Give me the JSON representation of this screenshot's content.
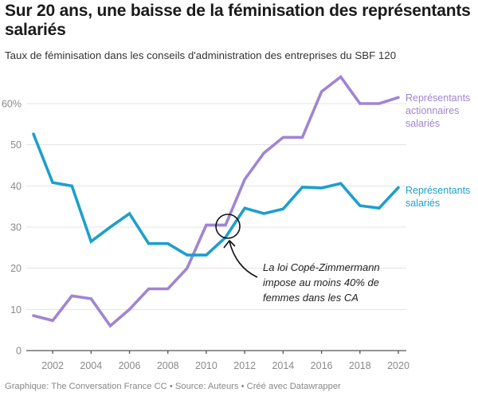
{
  "chart_data": {
    "type": "line",
    "title": "Sur 20 ans, une baisse de la féminisation des représentants salariés",
    "subtitle": "Taux de féminisation dans les conseils d'administration des entreprises du SBF 120",
    "xlabel": "",
    "ylabel": "",
    "x": [
      2001,
      2002,
      2003,
      2004,
      2005,
      2006,
      2007,
      2008,
      2009,
      2010,
      2011,
      2012,
      2013,
      2014,
      2015,
      2016,
      2017,
      2018,
      2019,
      2020
    ],
    "xlim": [
      2001,
      2020
    ],
    "ylim": [
      0,
      60
    ],
    "x_ticks": [
      "2002",
      "2004",
      "2006",
      "2008",
      "2010",
      "2012",
      "2014",
      "2016",
      "2018",
      "2020"
    ],
    "y_ticks": [
      {
        "value": 0,
        "label": "0"
      },
      {
        "value": 10,
        "label": "10"
      },
      {
        "value": 20,
        "label": "20"
      },
      {
        "value": 30,
        "label": "30"
      },
      {
        "value": 40,
        "label": "40"
      },
      {
        "value": 50,
        "label": "50"
      },
      {
        "value": 60,
        "label": "60%"
      }
    ],
    "grid": true,
    "series": [
      {
        "name": "Représentants actionnaires salariés",
        "label_lines": [
          "Représentants",
          "actionnaires",
          "salariés"
        ],
        "color": "#9f85d3",
        "values": [
          8.5,
          7.3,
          13.3,
          12.6,
          6.0,
          10.0,
          15.0,
          15.0,
          20.0,
          30.5,
          30.5,
          41.6,
          48.0,
          51.8,
          51.8,
          62.9,
          66.5,
          60.0,
          60.0,
          61.5
        ]
      },
      {
        "name": "Représentants salariés",
        "label_lines": [
          "Représentants",
          "salariés"
        ],
        "color": "#1d9fcd",
        "values": [
          52.6,
          40.8,
          40.0,
          26.5,
          30.0,
          33.3,
          26.0,
          26.0,
          23.2,
          23.2,
          27.5,
          34.6,
          33.3,
          34.4,
          39.7,
          39.5,
          40.6,
          35.2,
          34.6,
          39.6
        ]
      }
    ],
    "annotation": {
      "lines": [
        "La loi Copé-Zimmermann",
        "impose au moins 40% de",
        "femmes dans les CA"
      ],
      "target_x": 2011,
      "target_y": 30
    }
  },
  "footer": "Graphique: The Conversation France CC • Source: Auteurs • Créé avec Datawrapper"
}
